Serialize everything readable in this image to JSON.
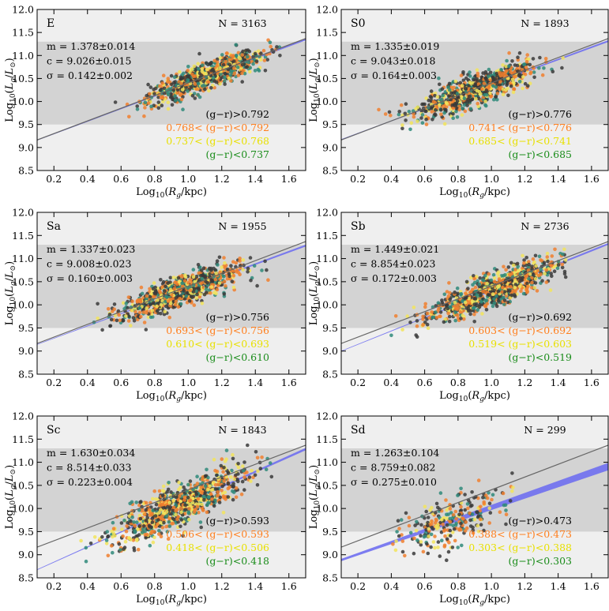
{
  "figure": {
    "xlabel_html": "Log10(Rg/kpc)",
    "ylabel_html": "Log10(Lg/L☉)",
    "band_colors": {
      "outer": "#efefef",
      "inner": "#d3d3d3",
      "ref_line": "#666666",
      "fit_band": "#6f6ff0"
    },
    "bin_colors": [
      "#3a3a3a",
      "#f07f2e",
      "#f2e45c",
      "#2f8a7a"
    ],
    "label_colors": [
      "#000000",
      "#ff7f1e",
      "#e8e000",
      "#1a8c1a"
    ]
  },
  "chart_data": [
    {
      "type": "scatter",
      "panel": "E",
      "N_label": "N = 3163",
      "N": 3163,
      "stats": [
        "m = 1.378±0.014",
        "c = 9.026±0.015",
        "σ = 0.142±0.002"
      ],
      "m": 1.378,
      "c": 9.026,
      "sigma": 0.142,
      "bins": [
        "(g−r)>0.792",
        "0.768< (g−r)<0.792",
        "0.737< (g−r)<0.768",
        "(g−r)<0.737"
      ],
      "xlim": [
        0.1,
        1.7
      ],
      "ylim": [
        8.5,
        12.0
      ],
      "xticks": [
        0.2,
        0.4,
        0.6,
        0.8,
        1.0,
        1.2,
        1.4,
        1.6
      ],
      "yticks": [
        8.5,
        9.0,
        9.5,
        10.0,
        10.5,
        11.0,
        11.5,
        12.0
      ],
      "band": [
        9.5,
        11.3
      ],
      "ref": {
        "m": 1.378,
        "c": 9.026
      },
      "fit": {
        "m": 1.37,
        "c": 9.02,
        "w": 0.02
      },
      "xcenter": 1.1,
      "xspread": 0.16,
      "xmin": 0.25,
      "xmax": 1.55
    },
    {
      "type": "scatter",
      "panel": "S0",
      "N_label": "N = 1893",
      "N": 1893,
      "stats": [
        "m = 1.335±0.019",
        "c = 9.043±0.018",
        "σ = 0.164±0.003"
      ],
      "m": 1.335,
      "c": 9.043,
      "sigma": 0.164,
      "bins": [
        "(g−r)>0.776",
        "0.741< (g−r)<0.776",
        "0.685< (g−r)<0.741",
        "(g−r)<0.685"
      ],
      "xlim": [
        0.1,
        1.7
      ],
      "ylim": [
        8.5,
        12.0
      ],
      "xticks": [
        0.2,
        0.4,
        0.6,
        0.8,
        1.0,
        1.2,
        1.4,
        1.6
      ],
      "yticks": [
        8.5,
        9.0,
        9.5,
        10.0,
        10.5,
        11.0,
        11.5,
        12.0
      ],
      "band": [
        9.5,
        11.3
      ],
      "ref": {
        "m": 1.378,
        "c": 9.026
      },
      "fit": {
        "m": 1.335,
        "c": 9.043,
        "w": 0.02
      },
      "xcenter": 0.9,
      "xspread": 0.17,
      "xmin": 0.15,
      "xmax": 1.45
    },
    {
      "type": "scatter",
      "panel": "Sa",
      "N_label": "N = 1955",
      "N": 1955,
      "stats": [
        "m = 1.337±0.023",
        "c = 9.008±0.023",
        "σ = 0.160±0.003"
      ],
      "m": 1.337,
      "c": 9.008,
      "sigma": 0.16,
      "bins": [
        "(g−r)>0.756",
        "0.693< (g−r)<0.756",
        "0.610< (g−r)<0.693",
        "(g−r)<0.610"
      ],
      "xlim": [
        0.1,
        1.7
      ],
      "ylim": [
        8.5,
        12.0
      ],
      "xticks": [
        0.2,
        0.4,
        0.6,
        0.8,
        1.0,
        1.2,
        1.4,
        1.6
      ],
      "yticks": [
        8.5,
        9.0,
        9.5,
        10.0,
        10.5,
        11.0,
        11.5,
        12.0
      ],
      "band": [
        9.5,
        11.3
      ],
      "ref": {
        "m": 1.378,
        "c": 9.026
      },
      "fit": {
        "m": 1.337,
        "c": 9.008,
        "w": 0.02
      },
      "xcenter": 0.95,
      "xspread": 0.18,
      "xmin": 0.2,
      "xmax": 1.5
    },
    {
      "type": "scatter",
      "panel": "Sb",
      "N_label": "N = 2736",
      "N": 2736,
      "stats": [
        "m = 1.449±0.021",
        "c = 8.854±0.023",
        "σ = 0.172±0.003"
      ],
      "m": 1.449,
      "c": 8.854,
      "sigma": 0.172,
      "bins": [
        "(g−r)>0.692",
        "0.603< (g−r)<0.692",
        "0.519< (g−r)<0.603",
        "(g−r)<0.519"
      ],
      "xlim": [
        0.1,
        1.7
      ],
      "ylim": [
        8.5,
        12.0
      ],
      "xticks": [
        0.2,
        0.4,
        0.6,
        0.8,
        1.0,
        1.2,
        1.4,
        1.6
      ],
      "yticks": [
        8.5,
        9.0,
        9.5,
        10.0,
        10.5,
        11.0,
        11.5,
        12.0
      ],
      "band": [
        9.5,
        11.3
      ],
      "ref": {
        "m": 1.378,
        "c": 9.026
      },
      "fit": {
        "m": 1.449,
        "c": 8.854,
        "w": 0.02
      },
      "xcenter": 1.0,
      "xspread": 0.19,
      "xmin": 0.4,
      "xmax": 1.45
    },
    {
      "type": "scatter",
      "panel": "Sc",
      "N_label": "N = 1843",
      "N": 1843,
      "stats": [
        "m = 1.630±0.034",
        "c = 8.514±0.033",
        "σ = 0.223±0.004"
      ],
      "m": 1.63,
      "c": 8.514,
      "sigma": 0.223,
      "bins": [
        "(g−r)>0.593",
        "0.506< (g−r)<0.593",
        "0.418< (g−r)<0.506",
        "(g−r)<0.418"
      ],
      "xlim": [
        0.1,
        1.7
      ],
      "ylim": [
        8.5,
        12.0
      ],
      "xticks": [
        0.2,
        0.4,
        0.6,
        0.8,
        1.0,
        1.2,
        1.4,
        1.6
      ],
      "yticks": [
        8.5,
        9.0,
        9.5,
        10.0,
        10.5,
        11.0,
        11.5,
        12.0
      ],
      "band": [
        9.5,
        11.3
      ],
      "ref": {
        "m": 1.378,
        "c": 9.026
      },
      "fit": {
        "m": 1.63,
        "c": 8.514,
        "w": 0.025
      },
      "xcenter": 0.95,
      "xspread": 0.2,
      "xmin": 0.2,
      "xmax": 1.5
    },
    {
      "type": "scatter",
      "panel": "Sd",
      "N_label": "N = 299",
      "N": 299,
      "stats": [
        "m = 1.263±0.104",
        "c = 8.759±0.082",
        "σ = 0.275±0.010"
      ],
      "m": 1.263,
      "c": 8.759,
      "sigma": 0.275,
      "bins": [
        "(g−r)>0.473",
        "0.388< (g−r)<0.473",
        "0.303< (g−r)<0.388",
        "(g−r)<0.303"
      ],
      "xlim": [
        0.1,
        1.7
      ],
      "ylim": [
        8.5,
        12.0
      ],
      "xticks": [
        0.2,
        0.4,
        0.6,
        0.8,
        1.0,
        1.2,
        1.4,
        1.6
      ],
      "yticks": [
        8.5,
        9.0,
        9.5,
        10.0,
        10.5,
        11.0,
        11.5,
        12.0
      ],
      "band": [
        9.5,
        11.3
      ],
      "ref": {
        "m": 1.378,
        "c": 9.026
      },
      "fit": {
        "m": 1.263,
        "c": 8.759,
        "w": 0.08
      },
      "xcenter": 0.75,
      "xspread": 0.15,
      "xmin": 0.4,
      "xmax": 1.15
    }
  ]
}
